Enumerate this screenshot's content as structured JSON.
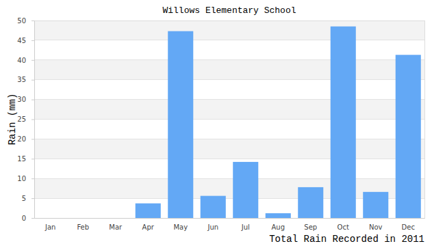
{
  "chart_data": {
    "type": "bar",
    "title": "Willows Elementary School",
    "y_label": "Rain (mm)",
    "x_label": "Total Rain Recorded in 2011",
    "categories": [
      "Jan",
      "Feb",
      "Mar",
      "Apr",
      "May",
      "Jun",
      "Jul",
      "Aug",
      "Sep",
      "Oct",
      "Nov",
      "Dec"
    ],
    "values": [
      0,
      0,
      0,
      3.7,
      47.3,
      5.6,
      14.2,
      1.2,
      7.8,
      48.5,
      6.6,
      41.3
    ],
    "color": "#63a8f5",
    "ylim": [
      0,
      50
    ],
    "yticks": [
      0,
      5,
      10,
      15,
      20,
      25,
      30,
      35,
      40,
      45,
      50
    ],
    "grid": true
  }
}
